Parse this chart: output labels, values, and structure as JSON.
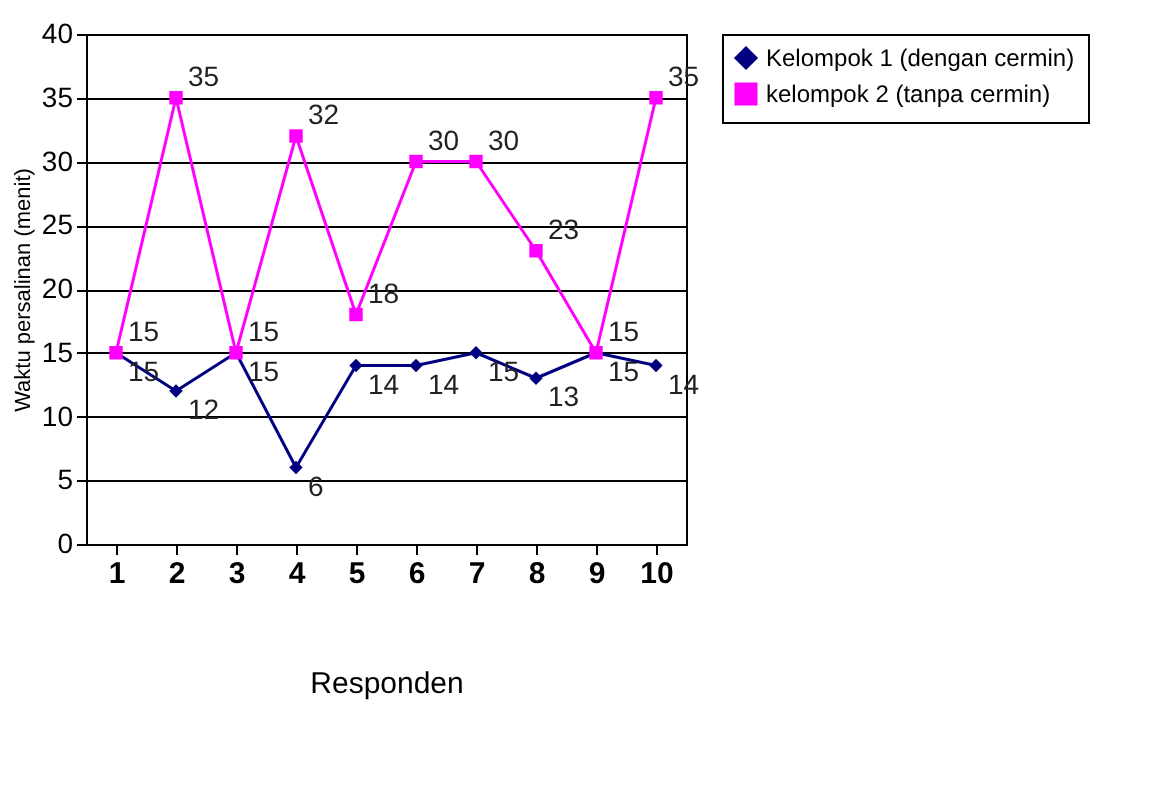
{
  "chart_data": {
    "type": "line",
    "xlabel": "Responden",
    "ylabel": "Waktu persalinan (menit)",
    "categories": [
      "1",
      "2",
      "3",
      "4",
      "5",
      "6",
      "7",
      "8",
      "9",
      "10"
    ],
    "series": [
      {
        "name": "Kelompok 1 (dengan cermin)",
        "color": "#000080",
        "marker": "diamond",
        "values": [
          15,
          12,
          15,
          6,
          14,
          14,
          15,
          13,
          15,
          14
        ]
      },
      {
        "name": "kelompok 2 (tanpa cermin)",
        "color": "#ff00ff",
        "marker": "square",
        "values": [
          15,
          35,
          15,
          32,
          18,
          30,
          30,
          23,
          15,
          35
        ]
      }
    ],
    "ylim": [
      0,
      40
    ],
    "yticks": [
      0,
      5,
      10,
      15,
      20,
      25,
      30,
      35,
      40
    ],
    "grid": "y",
    "legend": "right",
    "data_labels": true
  }
}
